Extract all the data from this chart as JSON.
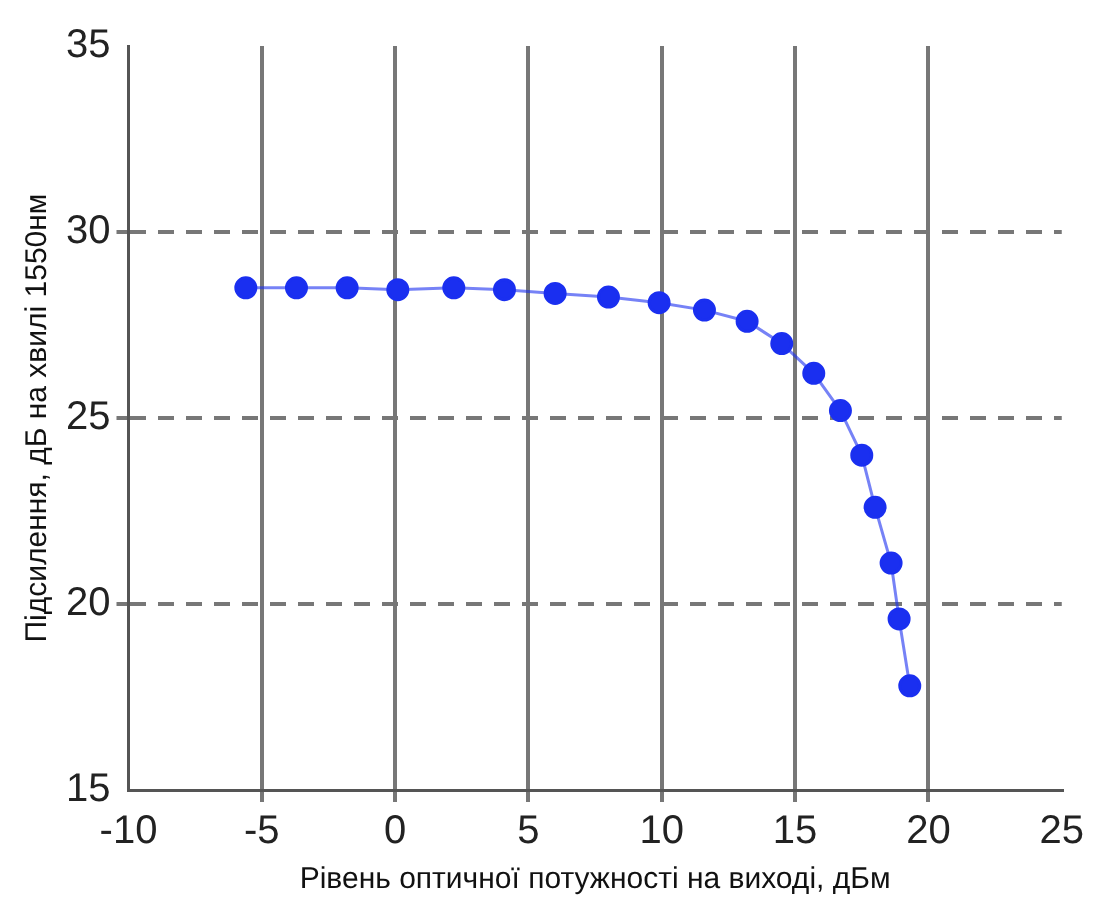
{
  "chart_data": {
    "type": "line",
    "xlabel": "Рівень оптичної потужності на виході, дБм",
    "ylabel": "Підсилення, дБ на хвилі 1550нм",
    "series": [
      {
        "color": "#1a2ff0",
        "x": [
          -5.6,
          -3.7,
          -1.8,
          0.1,
          2.2,
          4.1,
          6.0,
          8.0,
          9.9,
          11.6,
          13.2,
          14.5,
          15.7,
          16.7,
          17.5,
          18.0,
          18.6,
          18.9,
          19.3
        ],
        "values": [
          28.5,
          28.5,
          28.5,
          28.45,
          28.5,
          28.45,
          28.35,
          28.25,
          28.1,
          27.9,
          27.6,
          27.0,
          26.2,
          25.2,
          24.0,
          22.6,
          21.1,
          19.6,
          17.8
        ]
      }
    ],
    "xlim": [
      -10,
      25
    ],
    "xticks": [
      -10,
      -5,
      0,
      5,
      10,
      15,
      20,
      25
    ],
    "ylim": [
      15,
      35
    ],
    "yticks": [
      15,
      20,
      25,
      30,
      35
    ],
    "grid": true,
    "marker": "circle",
    "line_style": "solid",
    "legend": false
  }
}
